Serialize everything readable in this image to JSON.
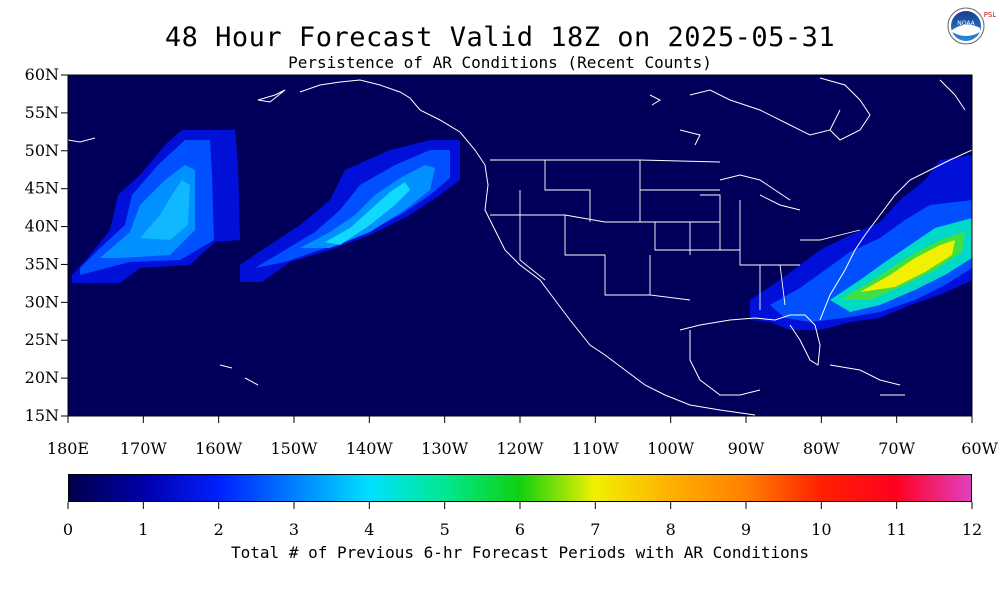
{
  "title": "48 Hour Forecast Valid 18Z on 2025-05-31",
  "subtitle": "Persistence of AR Conditions (Recent Counts)",
  "logo": {
    "icon": "noaa-logo-icon",
    "text": "NOAA",
    "side_text": "PSL"
  },
  "map": {
    "background_color": "#00005a",
    "lat_ticks": [
      "60N",
      "55N",
      "50N",
      "45N",
      "40N",
      "35N",
      "30N",
      "25N",
      "20N",
      "15N"
    ],
    "lon_ticks": [
      "180E",
      "170W",
      "160W",
      "150W",
      "140W",
      "130W",
      "120W",
      "110W",
      "100W",
      "90W",
      "80W",
      "70W",
      "60W"
    ],
    "extent": {
      "lon_min": -180,
      "lon_max": -60,
      "lat_min": 15,
      "lat_max": 60
    }
  },
  "colorbar": {
    "ticks": [
      "0",
      "1",
      "2",
      "3",
      "4",
      "5",
      "6",
      "7",
      "8",
      "9",
      "10",
      "11",
      "12"
    ],
    "colors": [
      "#00004a",
      "#0000aa",
      "#0020ff",
      "#0080ff",
      "#00e0ff",
      "#00e890",
      "#10d010",
      "#f0f000",
      "#ffb000",
      "#ff8000",
      "#ff2000",
      "#ff0020",
      "#e040c0"
    ],
    "label": "Total # of Previous 6-hr Forecast Periods with AR Conditions"
  }
}
